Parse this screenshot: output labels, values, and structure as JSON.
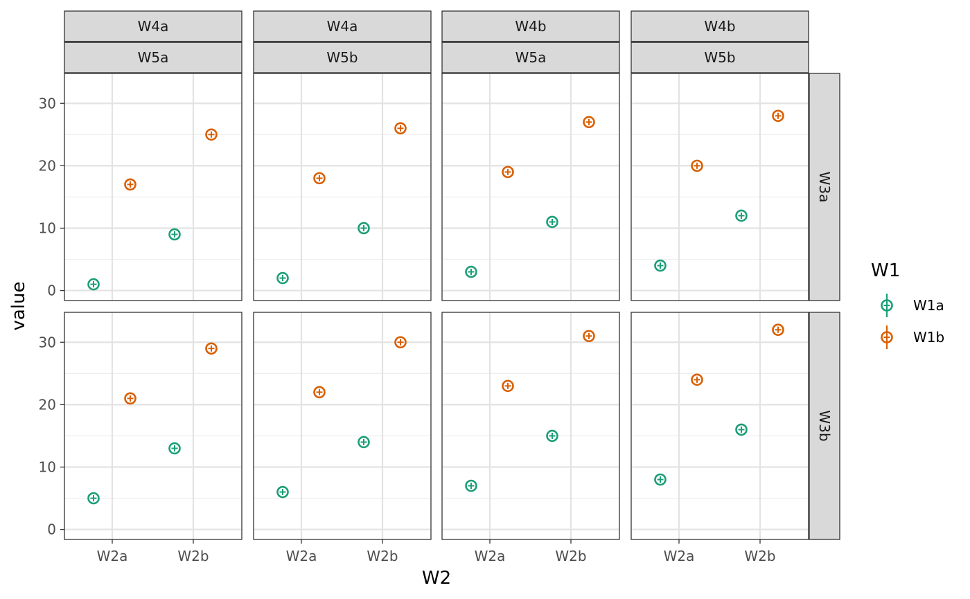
{
  "chart_data": {
    "type": "scatter",
    "xlabel": "W2",
    "ylabel": "value",
    "x_categories": [
      "W2a",
      "W2b"
    ],
    "ylim": [
      0,
      35
    ],
    "y_ticks": [
      0,
      10,
      20,
      30
    ],
    "grid": true,
    "legend": {
      "title": "W1",
      "placement": "right",
      "entries": [
        {
          "name": "W1a",
          "color": "#1b9e77"
        },
        {
          "name": "W1b",
          "color": "#d95f02"
        }
      ]
    },
    "facet_columns": [
      {
        "W4": "W4a",
        "W5": "W5a"
      },
      {
        "W4": "W4a",
        "W5": "W5b"
      },
      {
        "W4": "W4b",
        "W5": "W5a"
      },
      {
        "W4": "W4b",
        "W5": "W5b"
      }
    ],
    "facet_rows": [
      "W3a",
      "W3b"
    ],
    "panels": [
      {
        "row": "W3a",
        "col": 0,
        "points": [
          {
            "W1": "W1a",
            "W2": "W2a",
            "value": 1
          },
          {
            "W1": "W1b",
            "W2": "W2a",
            "value": 17
          },
          {
            "W1": "W1a",
            "W2": "W2b",
            "value": 9
          },
          {
            "W1": "W1b",
            "W2": "W2b",
            "value": 25
          }
        ]
      },
      {
        "row": "W3a",
        "col": 1,
        "points": [
          {
            "W1": "W1a",
            "W2": "W2a",
            "value": 2
          },
          {
            "W1": "W1b",
            "W2": "W2a",
            "value": 18
          },
          {
            "W1": "W1a",
            "W2": "W2b",
            "value": 10
          },
          {
            "W1": "W1b",
            "W2": "W2b",
            "value": 26
          }
        ]
      },
      {
        "row": "W3a",
        "col": 2,
        "points": [
          {
            "W1": "W1a",
            "W2": "W2a",
            "value": 3
          },
          {
            "W1": "W1b",
            "W2": "W2a",
            "value": 19
          },
          {
            "W1": "W1a",
            "W2": "W2b",
            "value": 11
          },
          {
            "W1": "W1b",
            "W2": "W2b",
            "value": 27
          }
        ]
      },
      {
        "row": "W3a",
        "col": 3,
        "points": [
          {
            "W1": "W1a",
            "W2": "W2a",
            "value": 4
          },
          {
            "W1": "W1b",
            "W2": "W2a",
            "value": 20
          },
          {
            "W1": "W1a",
            "W2": "W2b",
            "value": 12
          },
          {
            "W1": "W1b",
            "W2": "W2b",
            "value": 28
          }
        ]
      },
      {
        "row": "W3b",
        "col": 0,
        "points": [
          {
            "W1": "W1a",
            "W2": "W2a",
            "value": 5
          },
          {
            "W1": "W1b",
            "W2": "W2a",
            "value": 21
          },
          {
            "W1": "W1a",
            "W2": "W2b",
            "value": 13
          },
          {
            "W1": "W1b",
            "W2": "W2b",
            "value": 29
          }
        ]
      },
      {
        "row": "W3b",
        "col": 1,
        "points": [
          {
            "W1": "W1a",
            "W2": "W2a",
            "value": 6
          },
          {
            "W1": "W1b",
            "W2": "W2a",
            "value": 22
          },
          {
            "W1": "W1a",
            "W2": "W2b",
            "value": 14
          },
          {
            "W1": "W1b",
            "W2": "W2b",
            "value": 30
          }
        ]
      },
      {
        "row": "W3b",
        "col": 2,
        "points": [
          {
            "W1": "W1a",
            "W2": "W2a",
            "value": 7
          },
          {
            "W1": "W1b",
            "W2": "W2a",
            "value": 23
          },
          {
            "W1": "W1a",
            "W2": "W2b",
            "value": 15
          },
          {
            "W1": "W1b",
            "W2": "W2b",
            "value": 31
          }
        ]
      },
      {
        "row": "W3b",
        "col": 3,
        "points": [
          {
            "W1": "W1a",
            "W2": "W2a",
            "value": 8
          },
          {
            "W1": "W1b",
            "W2": "W2a",
            "value": 24
          },
          {
            "W1": "W1a",
            "W2": "W2b",
            "value": 16
          },
          {
            "W1": "W1b",
            "W2": "W2b",
            "value": 32
          }
        ]
      }
    ]
  }
}
